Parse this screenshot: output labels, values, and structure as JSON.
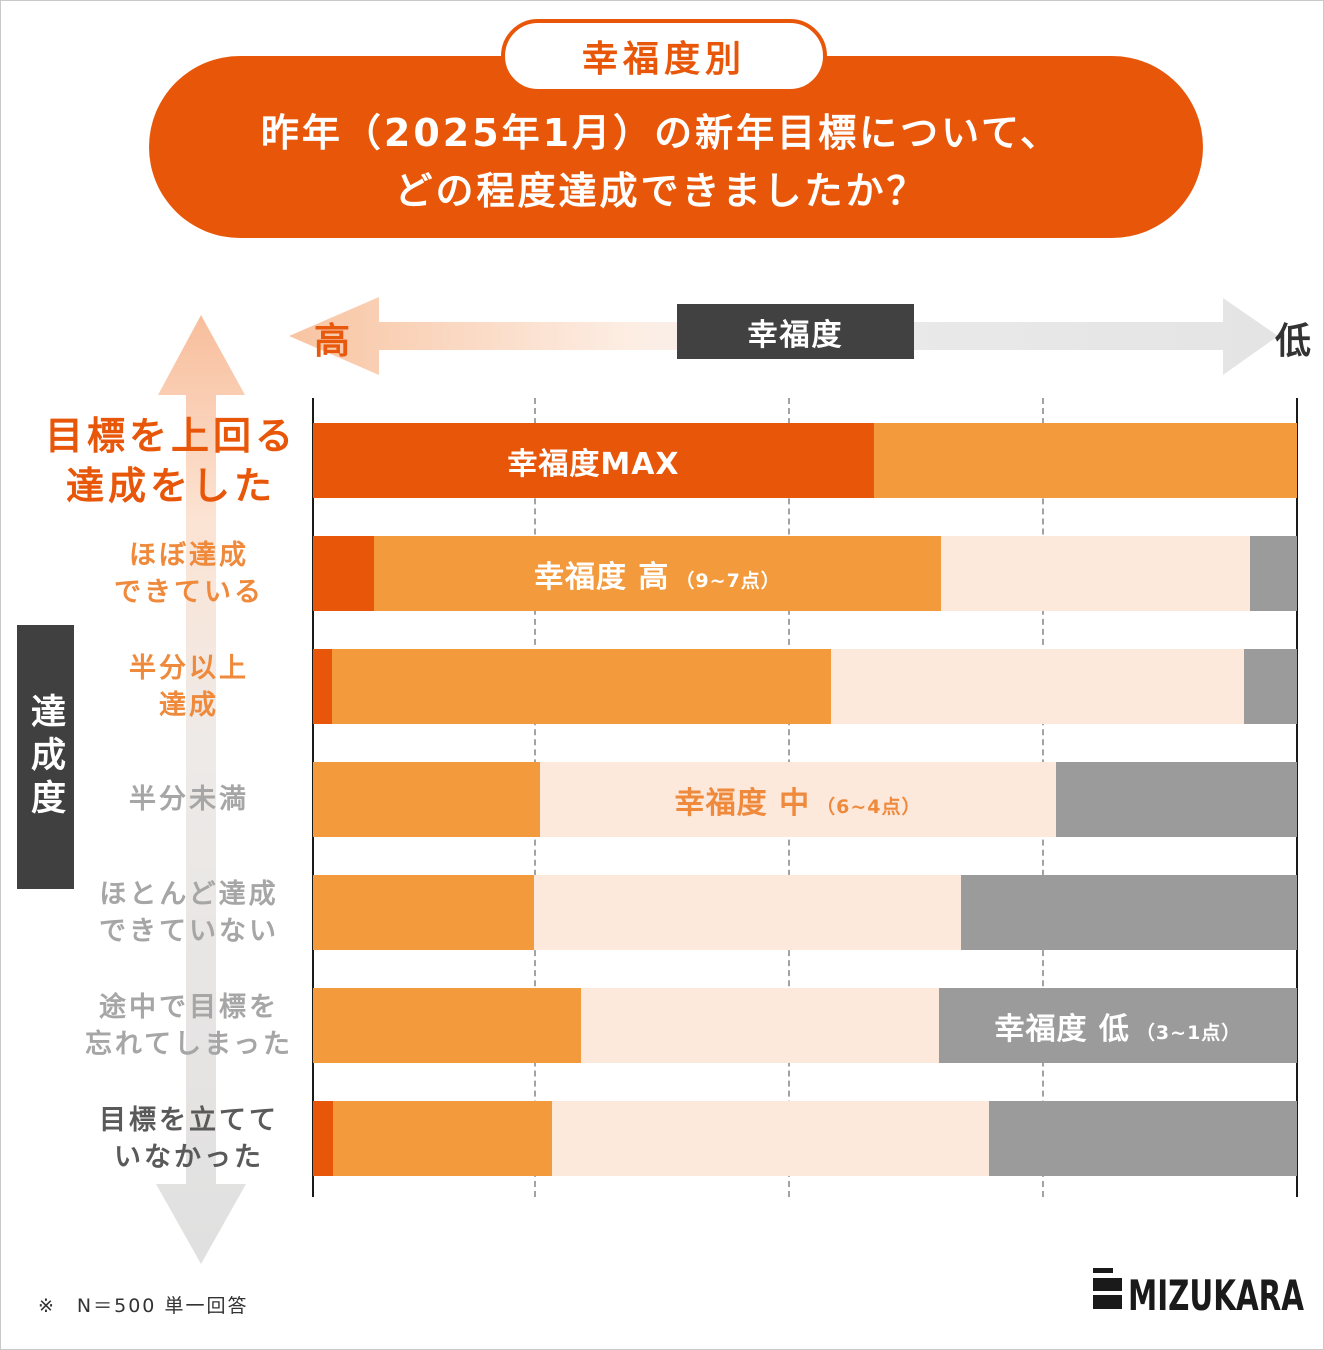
{
  "chart_data": {
    "type": "bar",
    "horizontal": true,
    "stacked": true,
    "title": "昨年（2025年1月）の新年目標について、\nどの程度達成できましたか？",
    "subtitle": "幸福度別",
    "xlabel": "幸福度",
    "xlabel_high": "高",
    "xlabel_low": "低",
    "ylabel": "達成度",
    "xlim": [
      0,
      100
    ],
    "grid": true,
    "categories": [
      "目標を上回る\n達成をした",
      "ほぼ達成\nできている",
      "半分以上\n達成",
      "半分未満",
      "ほとんど達成\nできていない",
      "途中で目標を\n忘れてしまった",
      "目標を立てて\nいなかった"
    ],
    "category_colors": [
      "#E85709",
      "#EF8A3C",
      "#EF8A3C",
      "#A6A6A6",
      "#A6A6A6",
      "#A6A6A6",
      "#5A5A5A"
    ],
    "series": [
      {
        "name": "幸福度MAX",
        "color": "#E85709",
        "label_color": "#FFFFFF",
        "label_row": 0,
        "values": [
          57.0,
          6.2,
          1.9,
          0,
          0,
          0,
          2.0
        ]
      },
      {
        "name": "幸福度 高",
        "range": "（9~7点）",
        "color": "#F29A3C",
        "label_color": "#FFFFFF",
        "label_row": 1,
        "values": [
          43.0,
          57.6,
          50.7,
          23.1,
          22.5,
          27.2,
          22.3
        ]
      },
      {
        "name": "幸福度 中",
        "range": "（6~4点）",
        "color": "#FDE8DC",
        "label_color": "#EF8A3C",
        "label_row": 3,
        "values": [
          0,
          31.4,
          42.0,
          52.4,
          43.4,
          36.4,
          44.4
        ]
      },
      {
        "name": "幸福度 低",
        "range": "（3~1点）",
        "color": "#9B9B9B",
        "label_color": "#FFFFFF",
        "label_row": 5,
        "values": [
          0,
          4.8,
          5.4,
          24.5,
          34.1,
          36.4,
          31.3
        ]
      }
    ]
  },
  "footer": {
    "note": "※　N＝500 単一回答"
  },
  "brand": {
    "logo_text": "MIZUKARA",
    "logo_icon": "mizukara-logo-icon"
  }
}
